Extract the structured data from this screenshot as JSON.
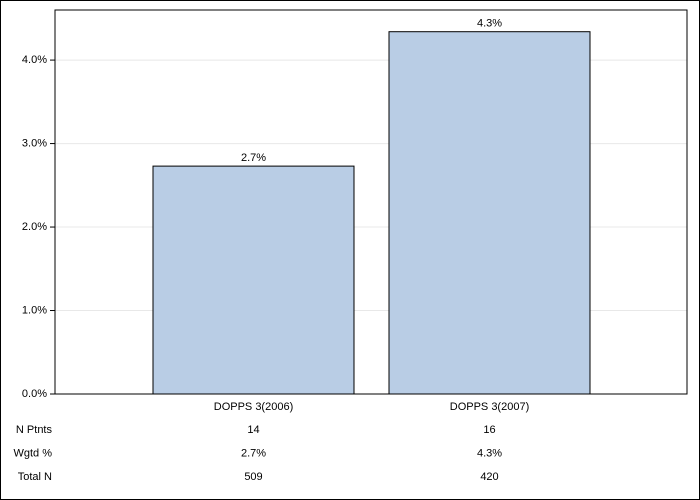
{
  "chart_data": {
    "type": "bar",
    "categories": [
      "DOPPS 3(2006)",
      "DOPPS 3(2007)"
    ],
    "values": [
      2.73,
      4.34
    ],
    "value_labels": [
      "2.7%",
      "4.3%"
    ],
    "color": "#b9cde5",
    "ylim": [
      0,
      4.6
    ],
    "yticks": [
      {
        "value": 0,
        "label": "0.0%"
      },
      {
        "value": 1,
        "label": "1.0%"
      },
      {
        "value": 2,
        "label": "2.0%"
      },
      {
        "value": 3,
        "label": "3.0%"
      },
      {
        "value": 4,
        "label": "4.0%"
      }
    ],
    "grid": true,
    "table": {
      "rows": [
        {
          "label": "N Ptnts",
          "values": [
            14,
            16
          ]
        },
        {
          "label": "Wgtd %",
          "values": [
            "2.7%",
            "4.3%"
          ]
        },
        {
          "label": "Total N",
          "values": [
            509,
            420
          ]
        }
      ]
    }
  }
}
